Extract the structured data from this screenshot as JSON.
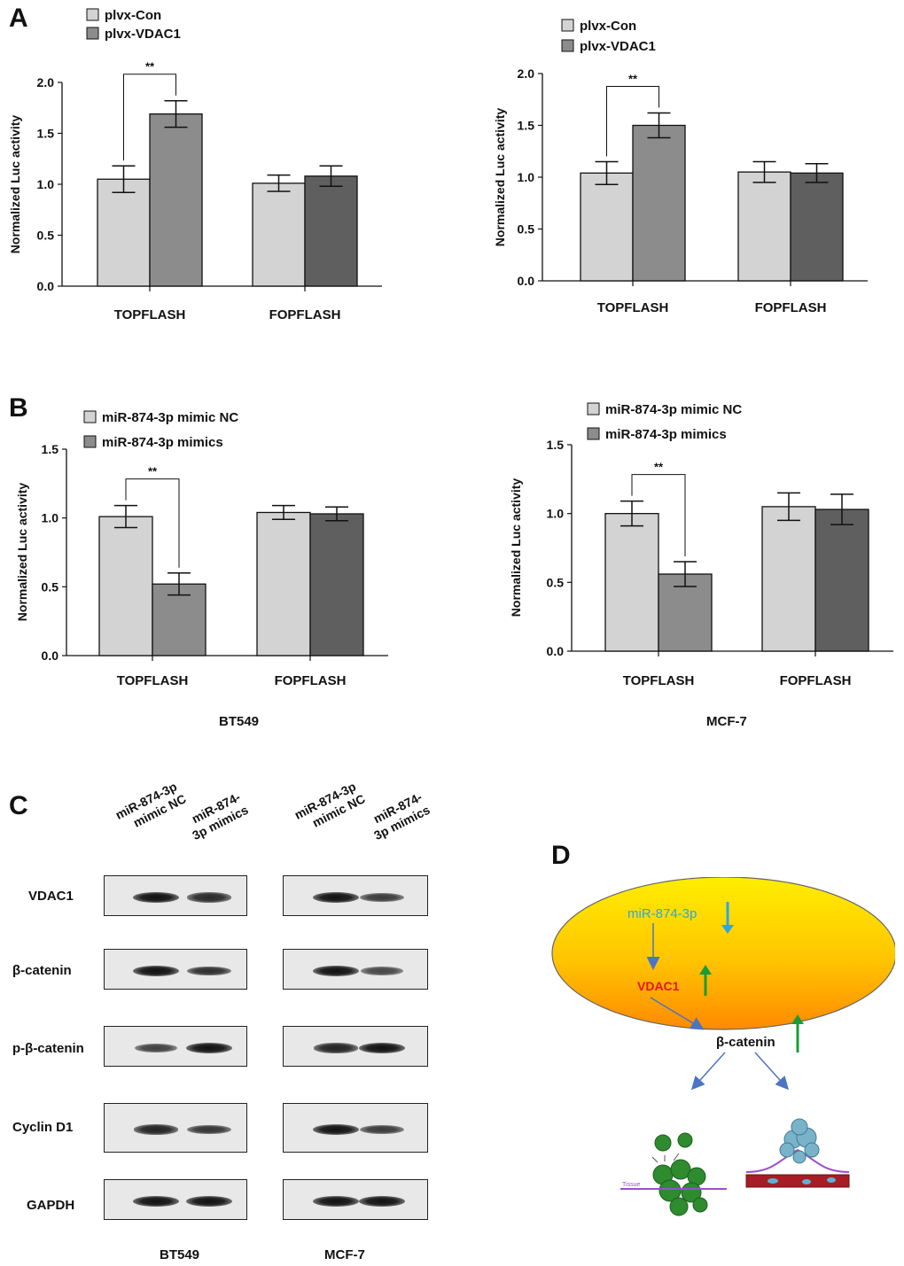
{
  "panels": {
    "a": "A",
    "b": "B",
    "c": "C",
    "d": "D"
  },
  "chart_data": [
    {
      "type": "bar",
      "panel": "A-left",
      "categories": [
        "TOPFLASH",
        "FOPFLASH"
      ],
      "series": [
        {
          "name": "plvx-Con",
          "values": [
            1.05,
            1.01
          ],
          "errors": [
            0.13,
            0.08
          ],
          "color": "#d3d3d3"
        },
        {
          "name": "plvx-VDAC1",
          "values": [
            1.69,
            1.08
          ],
          "errors": [
            0.13,
            0.1
          ],
          "color": "#8c8c8c"
        }
      ],
      "ylabel": "Normalized Luc activity",
      "ylim": [
        0,
        2.0
      ],
      "yticks": [
        "0.0",
        "0.5",
        "1.0",
        "1.5",
        "2.0"
      ],
      "significance": "**",
      "legend": "top-left"
    },
    {
      "type": "bar",
      "panel": "A-right",
      "categories": [
        "TOPFLASH",
        "FOPFLASH"
      ],
      "series": [
        {
          "name": "plvx-Con",
          "values": [
            1.04,
            1.05
          ],
          "errors": [
            0.11,
            0.1
          ],
          "color": "#d3d3d3"
        },
        {
          "name": "plvx-VDAC1",
          "values": [
            1.5,
            1.04
          ],
          "errors": [
            0.12,
            0.09
          ],
          "color": "#8c8c8c"
        }
      ],
      "ylabel": "Normalized Luc activity",
      "ylim": [
        0,
        2.0
      ],
      "yticks": [
        "0.0",
        "0.5",
        "1.0",
        "1.5",
        "2.0"
      ],
      "significance": "**",
      "legend": "top-left"
    },
    {
      "type": "bar",
      "panel": "B-left",
      "categories": [
        "TOPFLASH",
        "FOPFLASH"
      ],
      "series": [
        {
          "name": "miR-874-3p mimic NC",
          "values": [
            1.01,
            1.04
          ],
          "errors": [
            0.08,
            0.05
          ],
          "color": "#d3d3d3"
        },
        {
          "name": "miR-874-3p mimics",
          "values": [
            0.52,
            1.03
          ],
          "errors": [
            0.08,
            0.05
          ],
          "color": "#8c8c8c"
        }
      ],
      "ylabel": "Normalized Luc activity",
      "ylim": [
        0,
        1.5
      ],
      "yticks": [
        "0.0",
        "0.5",
        "1.0",
        "1.5"
      ],
      "significance": "**",
      "cell_line": "BT549",
      "legend": "top-left"
    },
    {
      "type": "bar",
      "panel": "B-right",
      "categories": [
        "TOPFLASH",
        "FOPFLASH"
      ],
      "series": [
        {
          "name": "miR-874-3p mimic NC",
          "values": [
            1.0,
            1.05
          ],
          "errors": [
            0.09,
            0.1
          ],
          "color": "#d3d3d3"
        },
        {
          "name": "miR-874-3p mimics",
          "values": [
            0.56,
            1.03
          ],
          "errors": [
            0.09,
            0.11
          ],
          "color": "#8c8c8c"
        }
      ],
      "ylabel": "Normalized Luc activity",
      "ylim": [
        0,
        1.5
      ],
      "yticks": [
        "0.0",
        "0.5",
        "1.0",
        "1.5"
      ],
      "significance": "**",
      "cell_line": "MCF-7",
      "legend": "top-left"
    }
  ],
  "western": {
    "lanes": [
      "miR-874-3p mimic NC",
      "miR-874-3p mimics"
    ],
    "lane_headers": {
      "nc_line1": "miR-874-3p",
      "nc_line2": "mimic NC",
      "mim_line1": "miR-874-",
      "mim_line2": "3p mimics"
    },
    "proteins": [
      "VDAC1",
      "β-catenin",
      "p-β-catenin",
      "Cyclin D1",
      "GAPDH"
    ],
    "cell_lines": [
      "BT549",
      "MCF-7"
    ],
    "band_intensity": {
      "BT549": [
        [
          1.0,
          0.8
        ],
        [
          1.0,
          0.75
        ],
        [
          0.6,
          1.0
        ],
        [
          0.85,
          0.7
        ],
        [
          1.0,
          1.0
        ]
      ],
      "MCF-7": [
        [
          1.0,
          0.65
        ],
        [
          1.0,
          0.55
        ],
        [
          0.85,
          1.0
        ],
        [
          1.0,
          0.65
        ],
        [
          1.0,
          1.0
        ]
      ]
    }
  },
  "diagram": {
    "mirna": "miR-874-3p",
    "vdac1": "VDAC1",
    "catenin": "β-catenin",
    "tissue_label": "Tissue",
    "colors": {
      "mirna": "#29a8e0",
      "vdac1": "#e8141c",
      "up_arrow": "#1a9c3a",
      "down_arrow": "#29a8e0",
      "connector": "#4a74c4"
    }
  }
}
